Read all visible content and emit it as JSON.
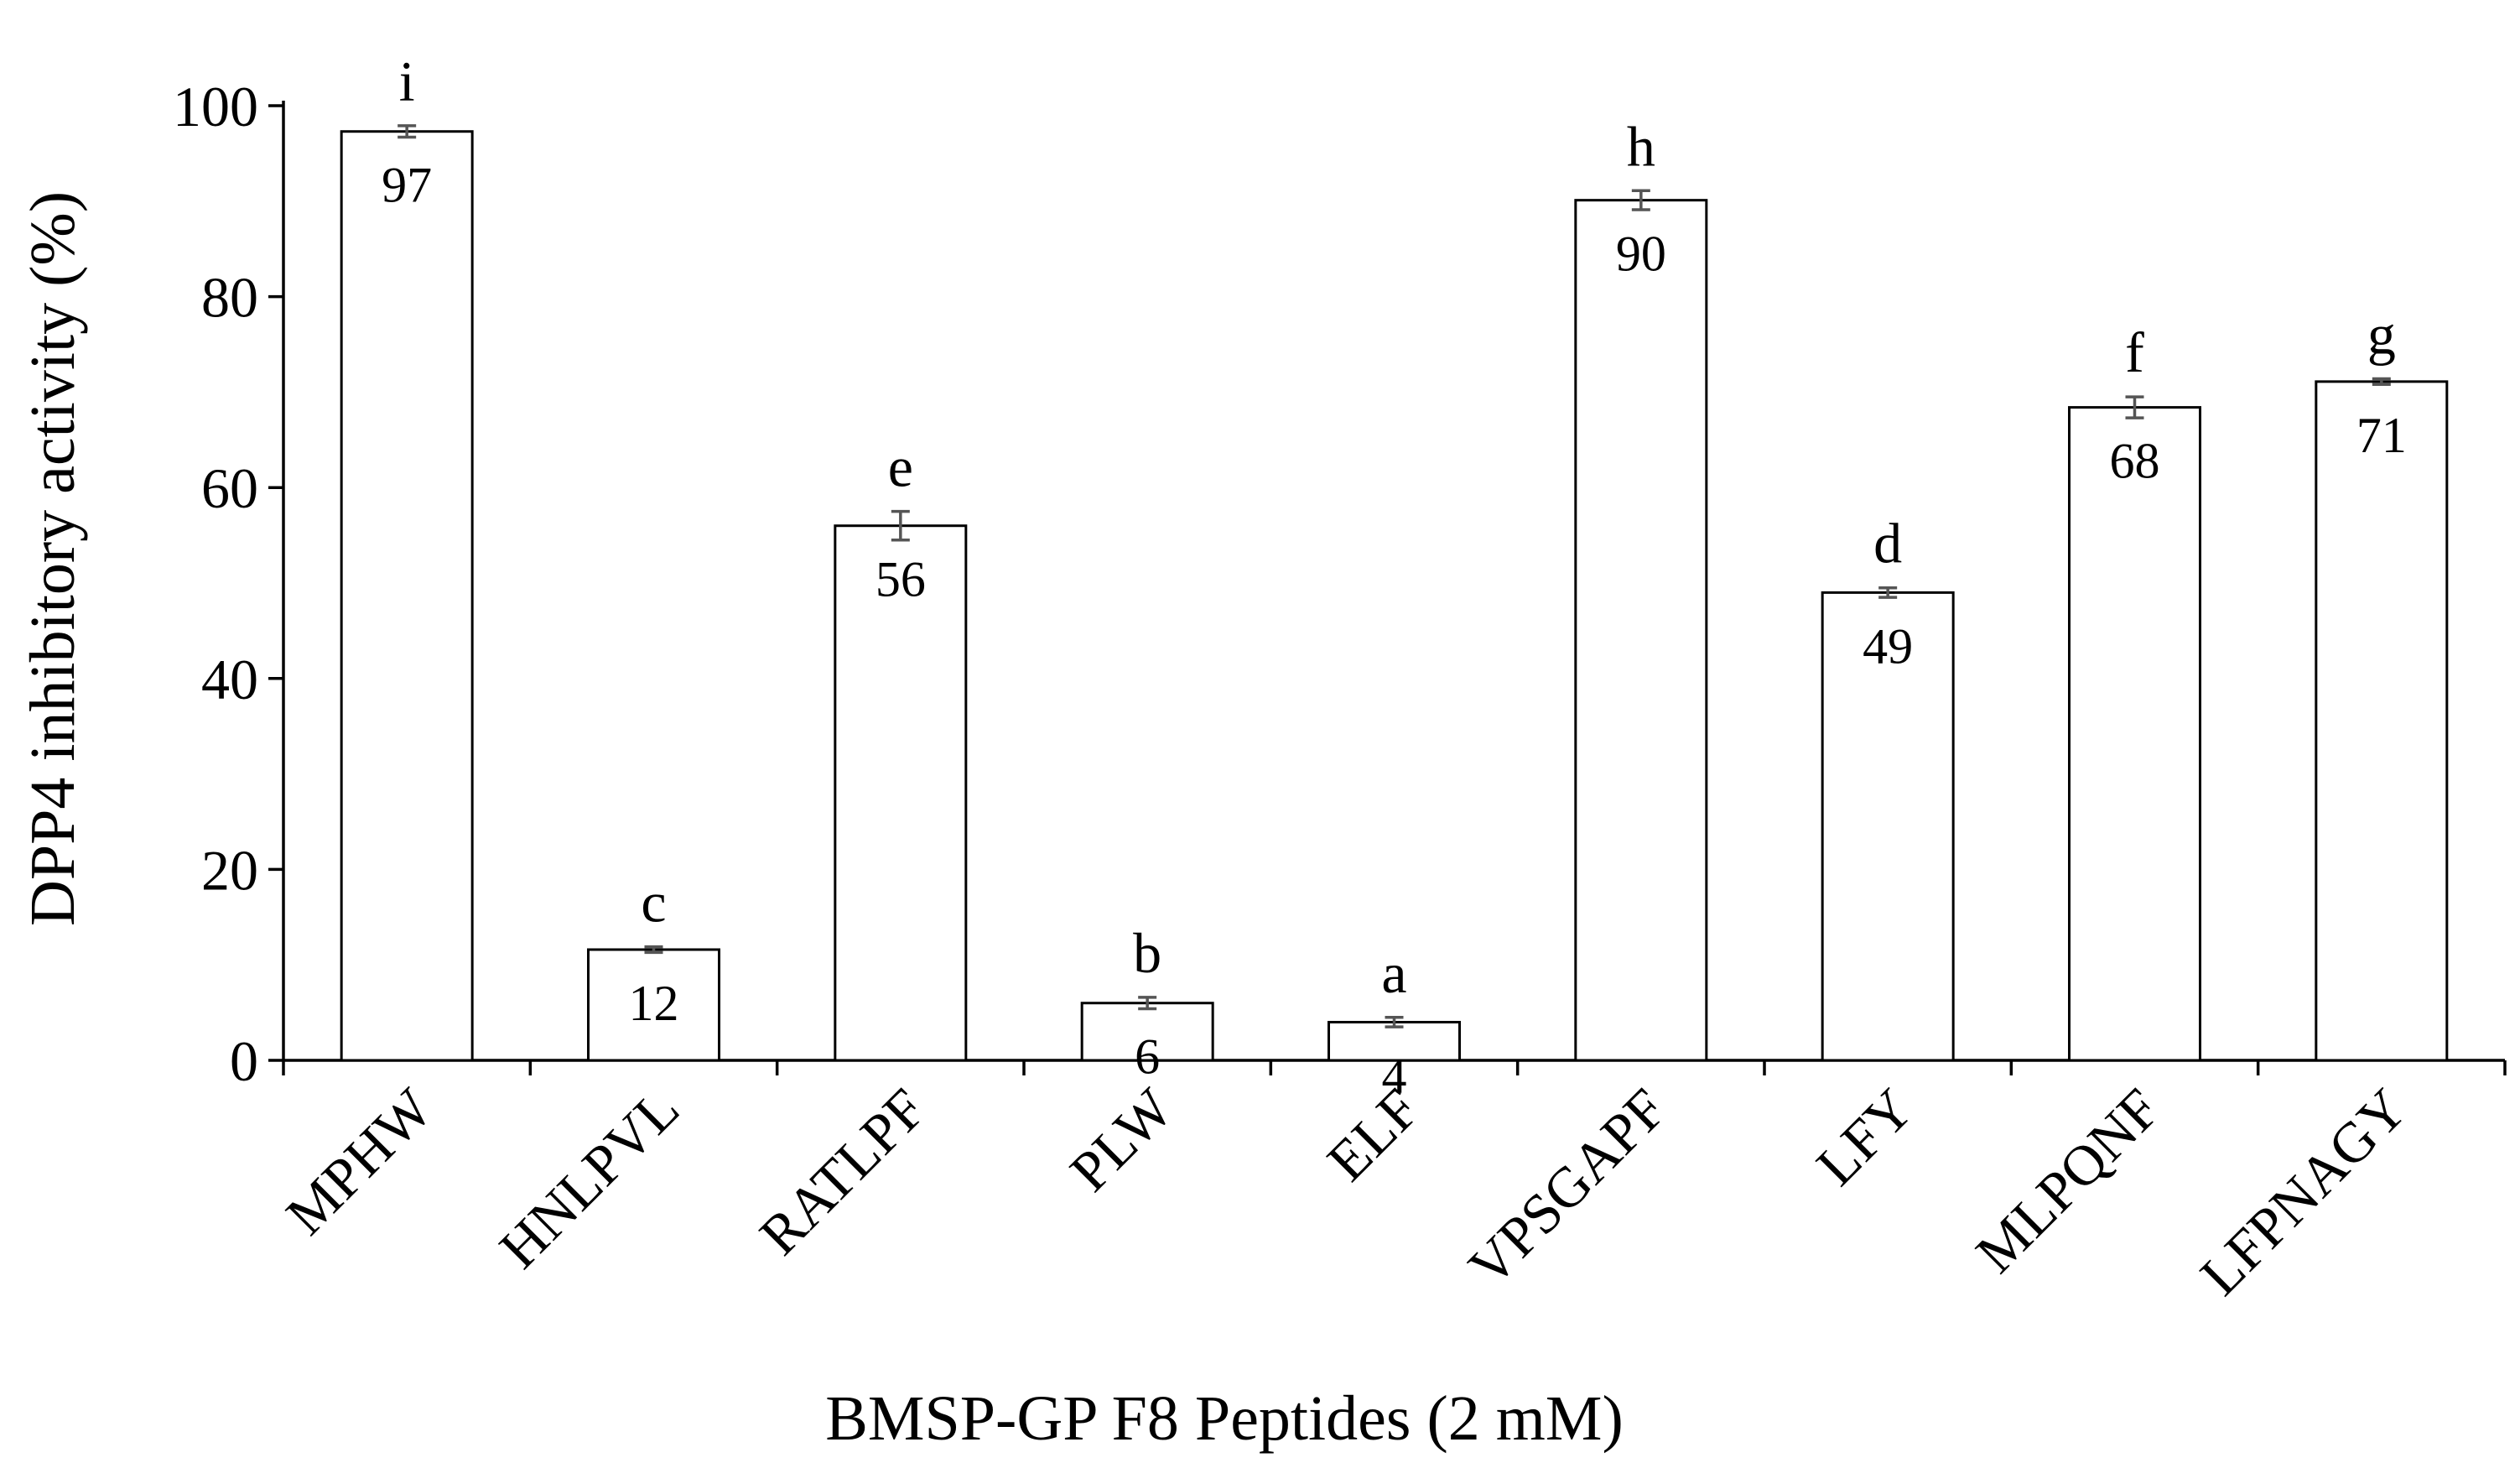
{
  "chart_data": {
    "type": "bar",
    "title": "",
    "xlabel": "BMSP-GP F8 Peptides (2 mM)",
    "ylabel": "DPP4 inhibitory activity (%)",
    "ylim": [
      0,
      100
    ],
    "yticks": [
      "0",
      "20",
      "40",
      "60",
      "80",
      "100"
    ],
    "grid": false,
    "categories": [
      "MPHW",
      "HNLPVL",
      "RATLPF",
      "PLW",
      "ELF",
      "VPSGAPF",
      "LFY",
      "MLPQNF",
      "LFPNAGY"
    ],
    "values": [
      97.3,
      11.6,
      56.0,
      6.0,
      4.0,
      90.1,
      49.0,
      68.4,
      71.1
    ],
    "errors": [
      0.6,
      0.3,
      1.5,
      0.6,
      0.5,
      1.0,
      0.5,
      1.1,
      0.3
    ],
    "value_labels": [
      "97",
      "12",
      "56",
      "6",
      "4",
      "90",
      "49",
      "68",
      "71"
    ],
    "significance_letters": [
      "i",
      "c",
      "e",
      "b",
      "a",
      "h",
      "d",
      "f",
      "g"
    ],
    "colors": {
      "bar_fill": "#ffffff",
      "bar_stroke": "#000000",
      "error_bar": "#555555",
      "text": "#000000"
    }
  }
}
